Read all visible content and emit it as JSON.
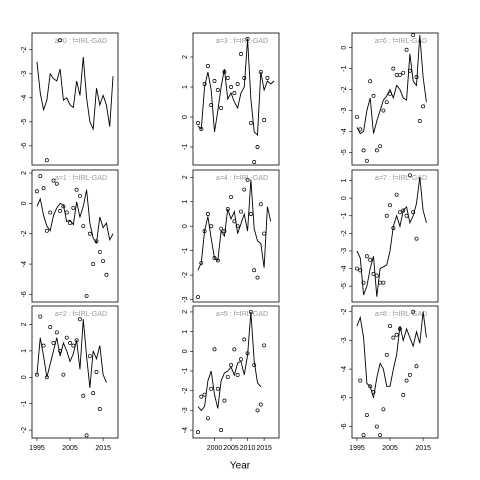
{
  "x_label": "Year",
  "chart_data": [
    {
      "type": "line-points",
      "title": "a=0 : f=IRL-GAD",
      "x": [
        1995,
        1996,
        1997,
        1998,
        1999,
        2000,
        2001,
        2002,
        2003,
        2004,
        2005,
        2006,
        2007,
        2008,
        2009,
        2010,
        2011,
        2012,
        2013,
        2014,
        2015,
        2016,
        2017,
        2018
      ],
      "series": [
        {
          "style": "line",
          "color": "#000000",
          "values": [
            -2.5,
            -3.8,
            -4.5,
            -4.1,
            -3.0,
            -3.2,
            -3.3,
            -2.8,
            -4.1,
            -4.0,
            -4.3,
            -4.4,
            -3.3,
            -3.9,
            -2.3,
            -4.0,
            -5.0,
            -5.3,
            -3.6,
            -4.3,
            -3.9,
            -4.3,
            -5.2,
            -3.1
          ]
        },
        {
          "style": "points",
          "color": "#000000",
          "values": [
            null,
            null,
            null,
            -6.6,
            null,
            null,
            null,
            -1.6,
            null,
            null,
            null,
            null,
            null,
            null,
            null,
            null,
            null,
            null,
            null,
            null,
            null,
            null,
            null,
            null
          ]
        }
      ],
      "xlim": [
        1993.5,
        2019.5
      ],
      "ylim": [
        -6.8,
        -1.3
      ],
      "yticks": [
        -2,
        -3,
        -4,
        -5,
        -6
      ]
    },
    {
      "type": "line-points",
      "title": "a=3 : f=IRL-GAD",
      "x": [
        1995,
        1996,
        1997,
        1998,
        1999,
        2000,
        2001,
        2002,
        2003,
        2004,
        2005,
        2006,
        2007,
        2008,
        2009,
        2010,
        2011,
        2012,
        2013,
        2014,
        2015,
        2016,
        2017,
        2018
      ],
      "series": [
        {
          "style": "line",
          "color": "#000000",
          "values": [
            -0.3,
            -0.4,
            1.0,
            1.5,
            0.9,
            -0.5,
            0.2,
            1.0,
            1.6,
            0.6,
            0.8,
            0.5,
            0.3,
            0.8,
            1.0,
            2.6,
            0.6,
            -0.5,
            -0.6,
            1.5,
            0.9,
            1.2,
            1.1,
            1.2
          ]
        },
        {
          "style": "points",
          "color": "#000000",
          "values": [
            -0.2,
            -0.4,
            1.1,
            1.7,
            0.4,
            1.2,
            0.9,
            0.3,
            1.5,
            1.3,
            1.0,
            0.8,
            1.1,
            2.1,
            1.3,
            2.6,
            -0.2,
            -1.5,
            -1.0,
            1.5,
            -0.1,
            1.3,
            null,
            null
          ]
        }
      ],
      "xlim": [
        1993.5,
        2019.5
      ],
      "ylim": [
        -1.6,
        2.8
      ],
      "yticks": [
        2,
        1,
        0,
        -1
      ]
    },
    {
      "type": "line-points",
      "title": "a=6 : f=IRL-GAD",
      "x": [
        1995,
        1996,
        1997,
        1998,
        1999,
        2000,
        2001,
        2002,
        2003,
        2004,
        2005,
        2006,
        2007,
        2008,
        2009,
        2010,
        2011,
        2012,
        2013,
        2014,
        2015,
        2016,
        2017,
        2018
      ],
      "series": [
        {
          "style": "line",
          "color": "#000000",
          "values": [
            -3.8,
            -4.1,
            -4.0,
            -3.0,
            -2.4,
            -4.1,
            -3.5,
            -3.0,
            -2.5,
            -2.3,
            -2.0,
            -2.4,
            -1.8,
            -2.0,
            -2.4,
            -2.5,
            -0.3,
            -1.6,
            -1.8,
            0.6,
            -1.4,
            -2.6,
            null,
            null
          ]
        },
        {
          "style": "points",
          "color": "#000000",
          "values": [
            -3.3,
            -3.9,
            -4.9,
            -5.4,
            -1.6,
            -2.3,
            -4.9,
            -4.7,
            -3.0,
            -2.6,
            -2.2,
            -1.0,
            -1.3,
            -1.3,
            -1.2,
            -0.1,
            -1.1,
            0.6,
            -1.4,
            -3.5,
            -2.8,
            null,
            null,
            null
          ]
        }
      ],
      "xlim": [
        1993.5,
        2019.5
      ],
      "ylim": [
        -5.6,
        0.7
      ],
      "yticks": [
        0,
        -1,
        -2,
        -3,
        -4,
        -5
      ]
    },
    {
      "type": "line-points",
      "title": "a=1 : f=IRL-GAD",
      "x": [
        1995,
        1996,
        1997,
        1998,
        1999,
        2000,
        2001,
        2002,
        2003,
        2004,
        2005,
        2006,
        2007,
        2008,
        2009,
        2010,
        2011,
        2012,
        2013,
        2014,
        2015,
        2016,
        2017,
        2018
      ],
      "series": [
        {
          "style": "line",
          "color": "#000000",
          "values": [
            -0.2,
            0.3,
            -0.8,
            -1.5,
            -1.8,
            -0.8,
            -0.3,
            0,
            -0.1,
            -1.2,
            -1.1,
            -1.4,
            0.1,
            -0.9,
            -0.2,
            0.9,
            -1.3,
            -2.3,
            -2.6,
            -0.9,
            -1.6,
            -1.3,
            -2.4,
            -2.0
          ]
        },
        {
          "style": "points",
          "color": "#000000",
          "values": [
            0.8,
            1.8,
            1.0,
            -1.8,
            -0.6,
            1.5,
            1.3,
            -0.5,
            -0.2,
            -0.6,
            -1.3,
            -0.3,
            0.9,
            0.5,
            -1.5,
            -6.1,
            -2.0,
            -4.0,
            -2.5,
            -3.2,
            -3.8,
            -4.7,
            null,
            null
          ]
        }
      ],
      "xlim": [
        1993.5,
        2019.5
      ],
      "ylim": [
        -6.5,
        2.2
      ],
      "yticks": [
        2,
        0,
        -2,
        -4,
        -6
      ]
    },
    {
      "type": "line-points",
      "title": "a=4 : f=IRL-GAD",
      "x": [
        1995,
        1996,
        1997,
        1998,
        1999,
        2000,
        2001,
        2002,
        2003,
        2004,
        2005,
        2006,
        2007,
        2008,
        2009,
        2010,
        2011,
        2012,
        2013,
        2014,
        2015,
        2016,
        2017,
        2018
      ],
      "series": [
        {
          "style": "line",
          "color": "#000000",
          "values": [
            -1.8,
            -1.5,
            -0.2,
            0.4,
            -0.5,
            -1.3,
            -1.4,
            -0.2,
            -0.4,
            0.7,
            0.3,
            0.6,
            -0.3,
            0.1,
            0.5,
            -0.2,
            1.9,
            -0.1,
            -0.6,
            -0.7,
            -1.7,
            0.8,
            0.2,
            null
          ]
        },
        {
          "style": "points",
          "color": "#000000",
          "values": [
            -2.9,
            -1.5,
            -0.2,
            0.5,
            0.0,
            -1.3,
            -1.4,
            -0.1,
            -0.2,
            0.7,
            1.2,
            0.2,
            0,
            0.6,
            1.5,
            1.9,
            0.5,
            -1.8,
            -2.1,
            0.9,
            -0.3,
            null,
            null,
            null
          ]
        }
      ],
      "xlim": [
        1993.5,
        2019.5
      ],
      "ylim": [
        -3.1,
        2.3
      ],
      "yticks": [
        2,
        1,
        0,
        -1,
        -2,
        -3
      ]
    },
    {
      "type": "line-points",
      "title": "a=7 : f=IRL-GAD",
      "x": [
        1995,
        1996,
        1997,
        1998,
        1999,
        2000,
        2001,
        2002,
        2003,
        2004,
        2005,
        2006,
        2007,
        2008,
        2009,
        2010,
        2011,
        2012,
        2013,
        2014,
        2015,
        2016,
        2017,
        2018
      ],
      "series": [
        {
          "style": "line",
          "color": "#000000",
          "values": [
            -3.0,
            -3.4,
            -5.5,
            -5.0,
            -4.0,
            -3.3,
            -5.6,
            -4.0,
            -3.9,
            -3.8,
            -3.0,
            -1.6,
            -1.0,
            -1.6,
            -0.7,
            -0.5,
            -1.4,
            -1.0,
            -0.3,
            1.2,
            -0.7,
            -1.4,
            null,
            null
          ]
        },
        {
          "style": "points",
          "color": "#000000",
          "values": [
            -4.0,
            -4.1,
            -4.8,
            -3.3,
            -3.5,
            -4.3,
            -4.4,
            -4.8,
            -4.8,
            -1.0,
            -0.4,
            -1.7,
            0.2,
            -0.8,
            -0.7,
            -1.0,
            1.3,
            -0.8,
            -2.3,
            null,
            null,
            null,
            null,
            null
          ]
        }
      ],
      "xlim": [
        1993.5,
        2019.5
      ],
      "ylim": [
        -5.9,
        1.6
      ],
      "yticks": [
        1,
        0,
        -1,
        -2,
        -3,
        -4,
        -5
      ]
    },
    {
      "type": "line-points",
      "title": "a=2 : f=IRL-GAD",
      "x": [
        1995,
        1996,
        1997,
        1998,
        1999,
        2000,
        2001,
        2002,
        2003,
        2004,
        2005,
        2006,
        2007,
        2008,
        2009,
        2010,
        2011,
        2012,
        2013,
        2014,
        2015,
        2016,
        2017,
        2018
      ],
      "series": [
        {
          "style": "line",
          "color": "#000000",
          "values": [
            0.1,
            1.5,
            0.8,
            0,
            0.5,
            1.0,
            1.5,
            0.8,
            1.3,
            1.0,
            0.6,
            0.9,
            1.4,
            0.3,
            2.2,
            0.8,
            -0.4,
            1.0,
            0.7,
            1.2,
            0.1,
            -0.2,
            null,
            null
          ]
        },
        {
          "style": "points",
          "color": "#000000",
          "values": [
            0.1,
            2.3,
            1.2,
            0,
            1.9,
            1.3,
            1.7,
            1.0,
            0.1,
            1.5,
            1.3,
            1.2,
            1.4,
            2.2,
            -0.7,
            -2.2,
            0.8,
            -0.6,
            0.2,
            -1.2,
            null,
            null,
            null,
            null
          ]
        }
      ],
      "xlim": [
        1993.5,
        2019.5
      ],
      "ylim": [
        -2.3,
        2.7
      ],
      "yticks": [
        2,
        1,
        0,
        -1,
        -2
      ],
      "xticks": [
        1995,
        2005,
        2015
      ]
    },
    {
      "type": "line-points",
      "title": "a=5 : f=IRL-GAD",
      "x": [
        1995,
        1996,
        1997,
        1998,
        1999,
        2000,
        2001,
        2002,
        2003,
        2004,
        2005,
        2006,
        2007,
        2008,
        2009,
        2010,
        2011,
        2012,
        2013,
        2014,
        2015,
        2016,
        2017,
        2018
      ],
      "series": [
        {
          "style": "line",
          "color": "#000000",
          "values": [
            -2.8,
            -3.0,
            -2.8,
            -1.5,
            -1.0,
            -2.2,
            -2.9,
            -1.5,
            -1.1,
            -1.0,
            -0.8,
            -1.2,
            -0.6,
            -0.5,
            -1.2,
            -0.2,
            2.0,
            -0.5,
            -1.6,
            -1.8,
            null,
            null,
            null,
            null
          ]
        },
        {
          "style": "points",
          "color": "#000000",
          "values": [
            -4.1,
            -2.3,
            -2.2,
            -3.4,
            -1.9,
            0.1,
            -1.9,
            -4.0,
            -2.5,
            -1.3,
            -0.7,
            0.1,
            -1.2,
            -0.4,
            0.6,
            -0.1,
            2.0,
            -0.7,
            -3.0,
            -2.7,
            0.3,
            null,
            null,
            null
          ]
        }
      ],
      "xlim": [
        1993.5,
        2019.5
      ],
      "ylim": [
        -4.4,
        2.3
      ],
      "yticks": [
        2,
        1,
        0,
        -1,
        -2,
        -3,
        -4
      ],
      "xticks": [
        2000,
        2005,
        2010,
        2015
      ]
    },
    {
      "type": "line-points",
      "title": "a=8 : f=IRL-GAD",
      "x": [
        1995,
        1996,
        1997,
        1998,
        1999,
        2000,
        2001,
        2002,
        2003,
        2004,
        2005,
        2006,
        2007,
        2008,
        2009,
        2010,
        2011,
        2012,
        2013,
        2014,
        2015,
        2016,
        2017,
        2018
      ],
      "series": [
        {
          "style": "line",
          "color": "#000000",
          "values": [
            -2.5,
            -2.2,
            -2.9,
            -4.5,
            -4.6,
            -5.0,
            -4.3,
            -3.8,
            -4.0,
            -4.6,
            -4.6,
            -4.0,
            -3.5,
            -2.5,
            -3.0,
            -2.6,
            -2.9,
            -3.2,
            -2.7,
            -3.1,
            -2.0,
            -2.9,
            null,
            null
          ]
        },
        {
          "style": "points",
          "color": "#000000",
          "values": [
            null,
            -4.4,
            -6.3,
            -5.6,
            -4.6,
            -4.8,
            -6.0,
            -6.3,
            -5.4,
            -3.5,
            -2.5,
            -2.9,
            -2.8,
            -2.6,
            -4.9,
            -4.4,
            -4.2,
            -2.0,
            -3.9,
            null,
            null,
            null,
            null,
            null
          ]
        }
      ],
      "xlim": [
        1993.5,
        2019.5
      ],
      "ylim": [
        -6.4,
        -1.8
      ],
      "yticks": [
        -2,
        -3,
        -4,
        -5,
        -6
      ],
      "xticks": [
        1995,
        2005,
        2015
      ]
    }
  ]
}
